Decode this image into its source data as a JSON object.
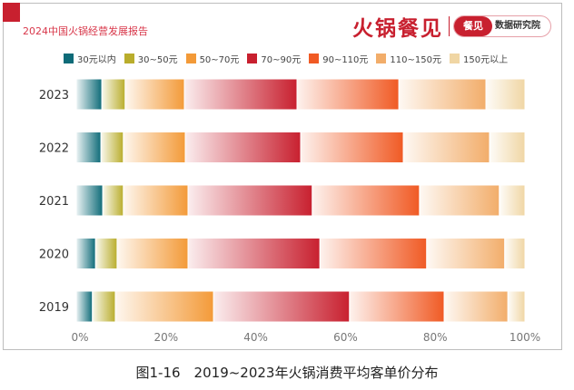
{
  "header": {
    "report_title": "2024中国火锅经营发展报告",
    "brand": "火锅餐见",
    "badge_left": "餐见",
    "badge_right": "数据研究院"
  },
  "caption": "图1-16　2019~2023年火锅消费平均客单价分布",
  "chart_data": {
    "type": "bar",
    "orientation": "horizontal",
    "stacked": true,
    "legend_placement": "top",
    "categories": [
      "2023",
      "2022",
      "2021",
      "2020",
      "2019"
    ],
    "xlim": [
      0,
      100
    ],
    "x_ticks": [
      "0%",
      "20%",
      "40%",
      "60%",
      "80%",
      "100%"
    ],
    "series": [
      {
        "name": "30元以内",
        "color": "#0e6b78",
        "values": [
          5.7,
          5.5,
          5.9,
          4.3,
          3.6
        ]
      },
      {
        "name": "30~50元",
        "color": "#b9ad2c",
        "values": [
          5.2,
          5.0,
          4.6,
          4.8,
          5.1
        ]
      },
      {
        "name": "50~70元",
        "color": "#f39a38",
        "values": [
          13.2,
          13.8,
          14.4,
          15.8,
          21.9
        ]
      },
      {
        "name": "70~90元",
        "color": "#c8202f",
        "values": [
          25.1,
          25.7,
          27.7,
          29.4,
          30.3
        ]
      },
      {
        "name": "90~110元",
        "color": "#f05a24",
        "values": [
          22.7,
          22.9,
          23.9,
          23.8,
          21.1
        ]
      },
      {
        "name": "110~150元",
        "color": "#f2ad6a",
        "values": [
          19.4,
          19.2,
          17.8,
          17.4,
          14.2
        ]
      },
      {
        "name": "150元以上",
        "color": "#f0d6a4",
        "values": [
          8.7,
          7.9,
          5.7,
          4.5,
          3.8
        ]
      }
    ]
  }
}
